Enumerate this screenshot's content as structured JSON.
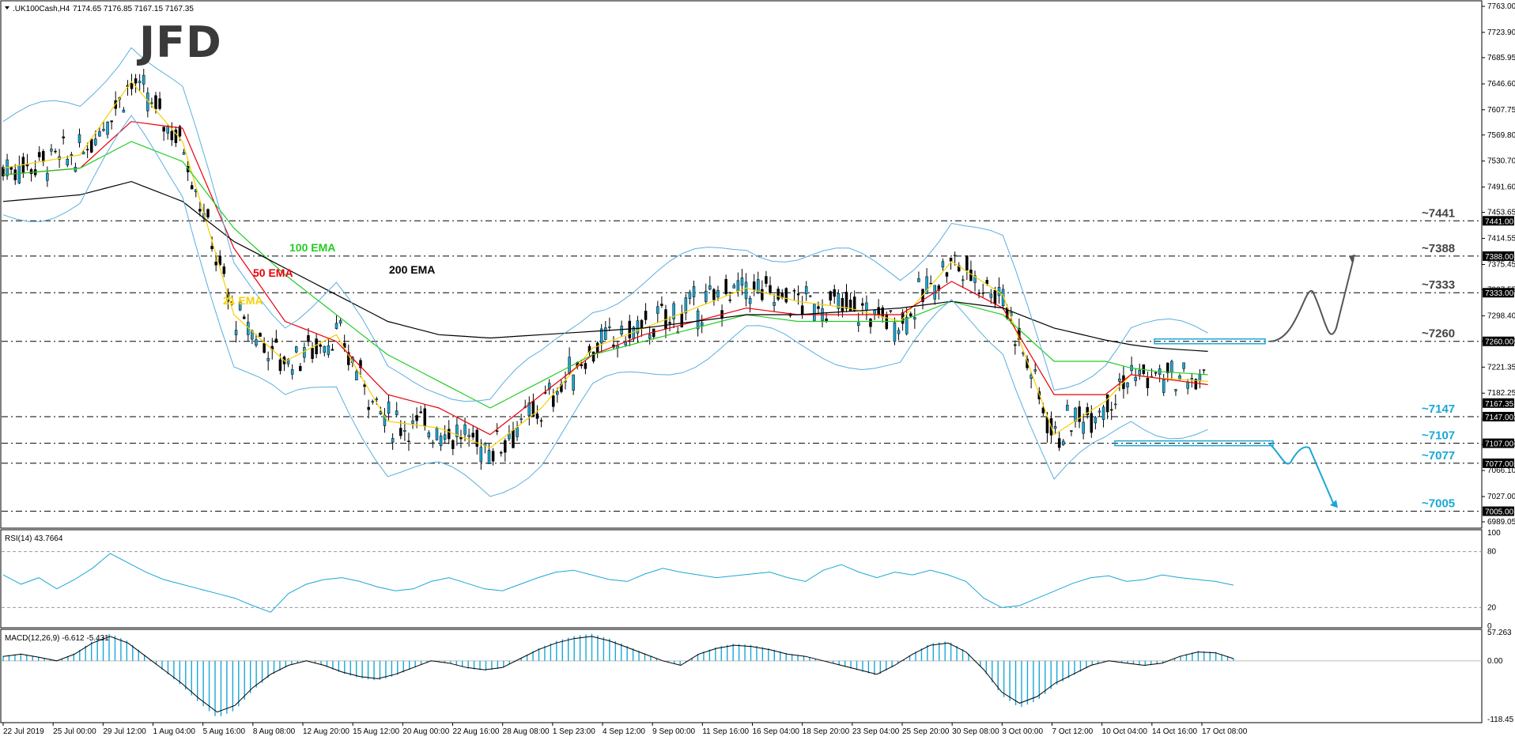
{
  "header": {
    "symbol": ".UK100Cash,H4",
    "ohlc": "7174.65 7176.85 7167.15 7167.35",
    "rsi_label": "RSI(14) 43.7664",
    "macd_label": "MACD(12,26,9) -6.612 -5.431"
  },
  "logo": {
    "text": "JFD"
  },
  "colors": {
    "ema21": "#f5d000",
    "ema50": "#e8000b",
    "ema100": "#22cc22",
    "ema200": "#000000",
    "bollinger": "#5aaee0",
    "candle": "#1aa7d6",
    "accent": "#1aa7d6"
  },
  "chart_data": [
    {
      "type": "line",
      "subtype": "candlestick",
      "ylim": [
        6989.05,
        7763.0
      ],
      "price_axis_labels": [
        "7763.00",
        "7723.90",
        "7685.95",
        "7646.60",
        "7607.75",
        "7569.80",
        "7530.70",
        "7491.60",
        "7453.65",
        "7414.55",
        "7375.45",
        "7337.55",
        "7298.40",
        "7260.30",
        "7221.35",
        "7182.25",
        "7143.20",
        "7105.20",
        "7066.10",
        "7027.00",
        "6989.05"
      ],
      "x_labels": [
        "22 Jul 2019",
        "25 Jul 00:00",
        "29 Jul 12:00",
        "1 Aug 04:00",
        "5 Aug 16:00",
        "8 Aug 08:00",
        "12 Aug 20:00",
        "15 Aug 12:00",
        "20 Aug 00:00",
        "22 Aug 16:00",
        "28 Aug 08:00",
        "1 Sep 23:00",
        "4 Sep 12:00",
        "9 Sep 00:00",
        "11 Sep 16:00",
        "16 Sep 04:00",
        "18 Sep 20:00",
        "23 Sep 04:00",
        "25 Sep 20:00",
        "30 Sep 08:00",
        "3 Oct 00:00",
        "7 Oct 12:00",
        "10 Oct 04:00",
        "14 Oct 16:00",
        "17 Oct 08:00"
      ],
      "series": [
        {
          "name": "21 EMA",
          "x": [
            0,
            3,
            5,
            7,
            9,
            11,
            13,
            15,
            17,
            19,
            21,
            23,
            25,
            27,
            29,
            31,
            33,
            35,
            37,
            39,
            41,
            43,
            44,
            45,
            47
          ],
          "values": [
            7520,
            7540,
            7650,
            7560,
            7300,
            7230,
            7270,
            7140,
            7130,
            7100,
            7160,
            7250,
            7280,
            7310,
            7340,
            7320,
            7310,
            7290,
            7380,
            7330,
            7120,
            7170,
            7210,
            7205,
            7200
          ]
        },
        {
          "name": "50 EMA",
          "x": [
            0,
            3,
            5,
            7,
            9,
            11,
            13,
            15,
            17,
            19,
            21,
            23,
            25,
            27,
            29,
            31,
            33,
            35,
            37,
            39,
            41,
            43,
            44,
            45,
            47
          ],
          "values": [
            7510,
            7520,
            7590,
            7580,
            7400,
            7290,
            7260,
            7180,
            7160,
            7120,
            7180,
            7240,
            7270,
            7290,
            7310,
            7300,
            7300,
            7300,
            7350,
            7310,
            7180,
            7180,
            7210,
            7205,
            7195
          ]
        },
        {
          "name": "100 EMA",
          "x": [
            0,
            3,
            5,
            7,
            9,
            11,
            13,
            15,
            17,
            19,
            21,
            23,
            25,
            27,
            29,
            31,
            33,
            35,
            37,
            39,
            41,
            43,
            44,
            45,
            47
          ],
          "values": [
            7510,
            7520,
            7560,
            7530,
            7430,
            7360,
            7300,
            7240,
            7200,
            7160,
            7200,
            7240,
            7260,
            7280,
            7300,
            7290,
            7290,
            7290,
            7320,
            7300,
            7230,
            7230,
            7220,
            7215,
            7210
          ]
        },
        {
          "name": "200 EMA",
          "x": [
            0,
            3,
            5,
            7,
            9,
            11,
            13,
            15,
            17,
            19,
            21,
            23,
            25,
            27,
            29,
            31,
            33,
            35,
            37,
            39,
            41,
            43,
            44,
            45,
            47
          ],
          "values": [
            7470,
            7480,
            7500,
            7470,
            7410,
            7370,
            7330,
            7290,
            7270,
            7265,
            7270,
            7275,
            7280,
            7290,
            7300,
            7300,
            7305,
            7310,
            7320,
            7310,
            7280,
            7262,
            7255,
            7250,
            7245
          ]
        }
      ],
      "levels": [
        {
          "label": "~7441",
          "value": 7441.0,
          "tag": "7441.00"
        },
        {
          "label": "~7388",
          "value": 7388.0,
          "tag": "7388.00"
        },
        {
          "label": "~7333",
          "value": 7333.0,
          "tag": "7333.00"
        },
        {
          "label": "~7260",
          "value": 7260.0,
          "tag": "7260.00"
        },
        {
          "label": "~7147",
          "value": 7147.0,
          "tag": "7147.00"
        },
        {
          "label": "~7107",
          "value": 7107.0,
          "tag": "7107.00"
        },
        {
          "label": "~7077",
          "value": 7077.0,
          "tag": "7077.00"
        },
        {
          "label": "~7005",
          "value": 7005.0,
          "tag": "7005.00"
        }
      ],
      "current_price_tag": "7167.35",
      "annotations": [
        "21 EMA",
        "50 EMA",
        "100 EMA",
        "200 EMA"
      ]
    },
    {
      "type": "line",
      "name": "RSI",
      "ylim": [
        0,
        100
      ],
      "axis_labels": [
        "100",
        "80",
        "20",
        "0"
      ],
      "levels": [
        80,
        20
      ],
      "values": [
        55,
        45,
        52,
        40,
        50,
        62,
        78,
        68,
        58,
        50,
        45,
        40,
        35,
        30,
        22,
        15,
        35,
        45,
        50,
        52,
        48,
        42,
        38,
        40,
        48,
        52,
        46,
        40,
        38,
        45,
        52,
        58,
        60,
        55,
        50,
        48,
        56,
        62,
        58,
        55,
        52,
        54,
        56,
        58,
        52,
        48,
        60,
        66,
        58,
        52,
        58,
        55,
        60,
        55,
        48,
        30,
        20,
        22,
        30,
        38,
        46,
        52,
        54,
        48,
        50,
        55,
        52,
        50,
        48,
        44
      ]
    },
    {
      "type": "bar",
      "name": "MACD",
      "ylim": [
        -118.45,
        57.263
      ],
      "axis_labels": [
        "57.263",
        "0.00",
        "-118.45"
      ],
      "values": [
        10,
        15,
        8,
        0,
        15,
        40,
        55,
        40,
        10,
        -20,
        -50,
        -85,
        -115,
        -100,
        -60,
        -30,
        -10,
        0,
        -10,
        -25,
        -35,
        -40,
        -30,
        -15,
        0,
        -5,
        -15,
        -20,
        -15,
        5,
        25,
        40,
        50,
        55,
        45,
        30,
        15,
        0,
        -10,
        15,
        28,
        35,
        32,
        25,
        15,
        10,
        0,
        -10,
        -20,
        -30,
        -10,
        15,
        35,
        40,
        20,
        -20,
        -70,
        -95,
        -80,
        -50,
        -30,
        -10,
        0,
        -5,
        -10,
        -5,
        10,
        20,
        18,
        5
      ]
    }
  ]
}
